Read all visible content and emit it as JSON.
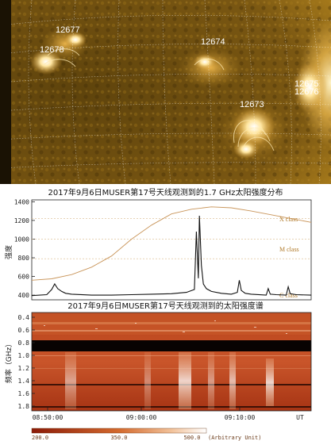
{
  "solar_image": {
    "region_labels": [
      "12677",
      "12678",
      "12674",
      "12673",
      "12675",
      "12676"
    ]
  },
  "lightcurve": {
    "title": "2017年9月6日MUSER第17号天线观测到的1.7 GHz太阳强度分布",
    "ylabel": "强度",
    "y_ticks": [
      "1400",
      "1200",
      "1000",
      "800",
      "600",
      "400"
    ],
    "class_labels": [
      "X class",
      "M class",
      "C class"
    ],
    "chart_data": {
      "type": "line",
      "ylim": [
        350,
        1420
      ],
      "xlim_minutes": [
        0,
        28
      ],
      "series": [
        {
          "style": "black-trace",
          "x": [
            0,
            1.5,
            2.0,
            2.3,
            2.6,
            3.0,
            3.4,
            4,
            6,
            8,
            10,
            12,
            14,
            15.5,
            16.3,
            16.5,
            16.7,
            16.8,
            17.0,
            17.2,
            17.5,
            18,
            19,
            20,
            20.6,
            20.8,
            21.0,
            21.4,
            22,
            23.5,
            23.7,
            23.9,
            24.5,
            25.5,
            25.7,
            25.9,
            26.5,
            28
          ],
          "y": [
            395,
            405,
            460,
            520,
            470,
            440,
            420,
            410,
            400,
            400,
            405,
            410,
            415,
            430,
            460,
            1080,
            580,
            1250,
            720,
            520,
            470,
            440,
            420,
            410,
            430,
            560,
            450,
            420,
            410,
            400,
            470,
            410,
            405,
            400,
            490,
            415,
            405,
            400
          ]
        },
        {
          "style": "orange-envelope",
          "x": [
            0,
            2,
            4,
            6,
            8,
            10,
            12,
            14,
            16,
            18,
            20,
            22,
            24,
            26,
            28
          ],
          "y": [
            560,
            575,
            620,
            700,
            820,
            1000,
            1150,
            1270,
            1320,
            1345,
            1335,
            1300,
            1260,
            1220,
            1180
          ]
        }
      ]
    },
    "colors": {
      "trace": "#111111",
      "envelope": "#c9955a"
    }
  },
  "spectrum": {
    "title": "2017年9月6日MUSER第17号天线观测到的太阳强度谱",
    "ylabel": "频率（GHz）",
    "y_ticks": [
      "0.4",
      "0.6",
      "0.8",
      "1.0",
      "1.2",
      "1.4",
      "1.6",
      "1.8"
    ],
    "x_ticks": [
      "08:50:00",
      "09:00:00",
      "09:10:00",
      "UT"
    ],
    "colorbar_ticks": [
      "200.0",
      "350.0",
      "500.0"
    ],
    "colorbar_unit": "(Arbitrary Unit)",
    "colors": {
      "low": "#8b1a08",
      "mid": "#d46a2e",
      "high": "#ffffff"
    }
  }
}
